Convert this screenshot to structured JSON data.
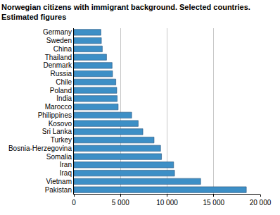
{
  "chart_data": {
    "type": "bar",
    "orientation": "horizontal",
    "title": "Norwegian citizens with immigrant background. Selected countries.",
    "subtitle": "Estimated figures",
    "categories": [
      "Germany",
      "Sweden",
      "China",
      "Thailand",
      "Denmark",
      "Russia",
      "Chile",
      "Poland",
      "India",
      "Marocco",
      "Philippines",
      "Kosovo",
      "Sri Lanka",
      "Turkey",
      "Bosnia-Herzegovina",
      "Somalia",
      "Iran",
      "Iraq",
      "Vietnam",
      "Pakistan"
    ],
    "values": [
      2900,
      2950,
      3050,
      3500,
      4100,
      4150,
      4500,
      4600,
      4650,
      4750,
      6200,
      6900,
      7400,
      8600,
      9300,
      9400,
      10700,
      10800,
      13600,
      18500
    ],
    "color": "#3d8fc6",
    "xlim": [
      0,
      20000
    ],
    "xticks": [
      0,
      {
        "value": 5000,
        "label": "5 000"
      },
      {
        "value": 10000,
        "label": "10 000"
      },
      {
        "value": 15000,
        "label": "15 000"
      },
      {
        "value": 20000,
        "label": "20 000"
      }
    ],
    "grid": true
  }
}
